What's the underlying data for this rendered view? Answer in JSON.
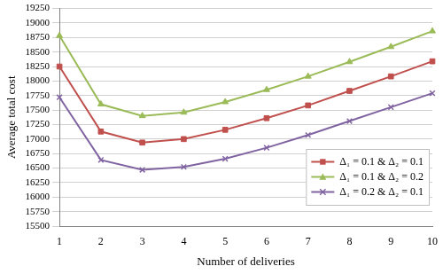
{
  "chart_data": {
    "type": "line",
    "x_label": "Number of deliveries",
    "y_label": "Average total cost",
    "categories": [
      1,
      2,
      3,
      4,
      5,
      6,
      7,
      8,
      9,
      10
    ],
    "series": [
      {
        "name": "Δ₁ = 0.1 & Δ₂ = 0.1",
        "color": "#c0504d",
        "marker": "square",
        "line_style": "solid",
        "values": [
          18250,
          17130,
          16940,
          17000,
          17160,
          17360,
          17580,
          17830,
          18080,
          18340
        ]
      },
      {
        "name": "Δ₁ = 0.1 & Δ₂ = 0.2",
        "color": "#9bbb59",
        "marker": "triangle",
        "line_style": "solid",
        "values": [
          18780,
          17600,
          17400,
          17460,
          17640,
          17850,
          18080,
          18330,
          18590,
          18860
        ]
      },
      {
        "name": "Δ₁ = 0.2 & Δ₂ = 0.1",
        "color": "#8064a2",
        "marker": "x",
        "line_style": "solid",
        "values": [
          17720,
          16640,
          16470,
          16520,
          16660,
          16850,
          17070,
          17310,
          17550,
          17790
        ]
      }
    ],
    "ylim": [
      15500,
      19250
    ],
    "yticks": [
      15500,
      15750,
      16000,
      16250,
      16500,
      16750,
      17000,
      17250,
      17500,
      17750,
      18000,
      18250,
      18500,
      18750,
      19000,
      19250
    ],
    "grid": true,
    "legend": "lower right"
  }
}
